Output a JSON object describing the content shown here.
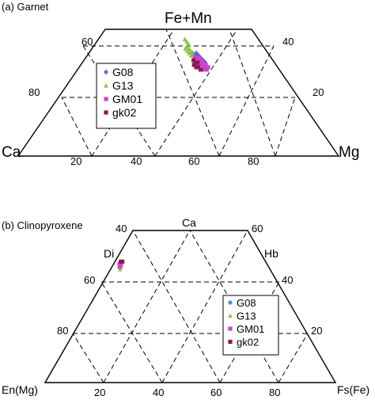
{
  "chart_data": [
    {
      "type": "scatter",
      "subtype": "ternary-trapezoid",
      "title": "(a) Garnet",
      "apex_top": "Fe+Mn",
      "apex_left": "Ca",
      "apex_right": "Mg",
      "bottom_ticks": [
        "20",
        "40",
        "60",
        "80"
      ],
      "left_ticks": [
        "60",
        "80"
      ],
      "right_ticks": [
        "40",
        "20"
      ],
      "legend": [
        "G08",
        "G13",
        "GM01",
        "gk02"
      ],
      "series": [
        {
          "name": "G08",
          "color": "#6a5fc0",
          "marker": "diamond",
          "points": [
            [
              58,
              44
            ],
            [
              60,
              44
            ],
            [
              61,
              43
            ],
            [
              59,
              43
            ],
            [
              60,
              42
            ],
            [
              62,
              42
            ],
            [
              61,
              41
            ],
            [
              63,
              41
            ],
            [
              60,
              40
            ],
            [
              62,
              40
            ],
            [
              64,
              40
            ],
            [
              61,
              39
            ],
            [
              63,
              39
            ]
          ]
        },
        {
          "name": "G13",
          "color": "#8bc34a",
          "marker": "triangle",
          "points": [
            [
              54,
              50
            ],
            [
              55,
              49
            ],
            [
              56,
              48
            ],
            [
              55,
              47
            ],
            [
              54,
              46
            ],
            [
              56,
              46
            ],
            [
              57,
              45
            ],
            [
              55,
              45
            ],
            [
              56,
              44
            ],
            [
              58,
              44
            ],
            [
              57,
              43
            ]
          ]
        },
        {
          "name": "GM01",
          "color": "#cc44cc",
          "marker": "square",
          "points": [
            [
              59,
              42
            ],
            [
              61,
              42
            ],
            [
              62,
              41
            ],
            [
              60,
              41
            ],
            [
              61,
              40
            ],
            [
              63,
              40
            ],
            [
              62,
              39
            ],
            [
              64,
              39
            ],
            [
              60,
              39
            ],
            [
              63,
              38
            ],
            [
              65,
              38
            ],
            [
              62,
              37
            ],
            [
              64,
              37
            ]
          ]
        },
        {
          "name": "gk02",
          "color": "#8b1a4a",
          "marker": "square",
          "points": [
            [
              58,
              41
            ],
            [
              59,
              40
            ],
            [
              60,
              40
            ],
            [
              58,
              39
            ],
            [
              59,
              38
            ],
            [
              60,
              38
            ],
            [
              61,
              37
            ]
          ]
        }
      ]
    },
    {
      "type": "scatter",
      "subtype": "ternary-trapezoid",
      "title": "(b) Clinopyroxene",
      "apex_top": "Ca",
      "apex_left": "En(Mg)",
      "apex_right": "Fs(Fe)",
      "region_left": "Di",
      "region_right": "Hb",
      "bottom_ticks": [
        "20",
        "40",
        "60",
        "80"
      ],
      "left_ticks": [
        "40",
        "60",
        "80"
      ],
      "right_ticks": [
        "60",
        "40",
        "20"
      ],
      "legend": [
        "G08",
        "G13",
        "GM01",
        "gk02"
      ],
      "series": [
        {
          "name": "G08",
          "color": "#4a90c8",
          "marker": "circle",
          "points": [
            [
              4,
              47
            ],
            [
              5,
              46
            ],
            [
              5,
              47
            ]
          ]
        },
        {
          "name": "G13",
          "color": "#8bc34a",
          "marker": "triangle",
          "points": [
            [
              5,
              46
            ],
            [
              6,
              45
            ],
            [
              6,
              46
            ]
          ]
        },
        {
          "name": "GM01",
          "color": "#cc44cc",
          "marker": "square",
          "points": [
            [
              4,
              47
            ],
            [
              5,
              47
            ],
            [
              5,
              46
            ]
          ]
        },
        {
          "name": "gk02",
          "color": "#8b1a4a",
          "marker": "square",
          "points": [
            [
              4,
              48
            ],
            [
              5,
              48
            ]
          ]
        }
      ]
    }
  ]
}
